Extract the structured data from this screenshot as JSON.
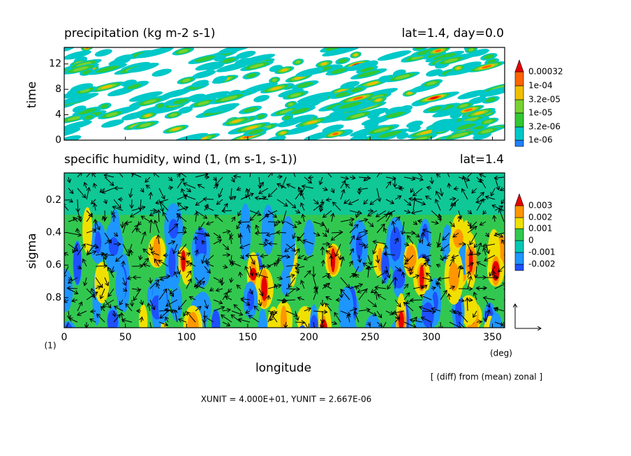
{
  "chart_data": [
    {
      "type": "contour",
      "title": "precipitation (kg m-2 s-1)",
      "annotation": "lat=1.4, day=0.0",
      "y_label": "time",
      "xlim": [
        0,
        360
      ],
      "ylim": [
        0,
        14.6
      ],
      "yticks": [
        0,
        4,
        8,
        12
      ],
      "levels": [
        {
          "value": 1e-06,
          "label": "1e-06"
        },
        {
          "value": 3.2e-06,
          "label": "3.2e-06"
        },
        {
          "value": 1e-05,
          "label": "1e-05"
        },
        {
          "value": 3.2e-05,
          "label": "3.2e-05"
        },
        {
          "value": 0.0001,
          "label": "1e-04"
        },
        0.00032
      ],
      "colors": [
        "#2080ff",
        "#00c8c8",
        "#32c832",
        "#78d232",
        "#f0c000",
        "#ff6400",
        "#e60000"
      ]
    },
    {
      "type": "contour",
      "title": "specific humidity, wind (1, (m s-1, s-1))",
      "annotation": "lat=1.4",
      "x_label": "longitude",
      "x_unit": "(deg)",
      "y_label": "sigma",
      "xlim": [
        0,
        360
      ],
      "xticks": [
        0,
        50,
        100,
        150,
        200,
        250,
        300,
        350
      ],
      "ylim": [
        0.985,
        0.033
      ],
      "yticks": [
        0.2,
        0.4,
        0.6,
        0.8
      ],
      "levels": [
        -0.002,
        -0.001,
        0,
        0.001,
        0.002,
        0.003
      ],
      "colors": [
        "#1e50ff",
        "#1e96ff",
        "#00c8b4",
        "#32c850",
        "#f0e000",
        "#ff9600",
        "#e60000"
      ],
      "footnote": "(1)",
      "note": "[ (diff) from (mean) zonal ]",
      "units_text": "XUNIT = 4.000E+01, YUNIT = 2.667E-06"
    }
  ]
}
